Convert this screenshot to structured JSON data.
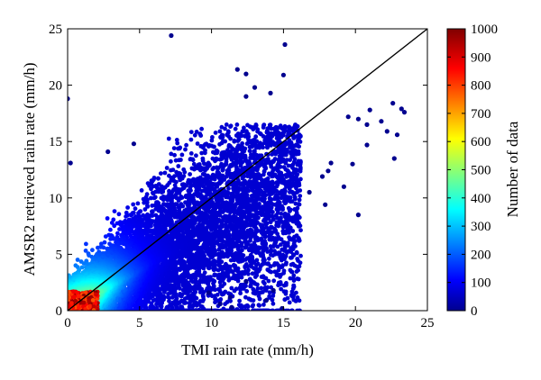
{
  "chart_data": {
    "type": "heatmap",
    "xlabel": "TMI rain rate (mm/h)",
    "ylabel": "AMSR2 retrieved rain rate (mm/h)",
    "xlim": [
      0,
      25
    ],
    "ylim": [
      0,
      25
    ],
    "x_ticks": [
      "0",
      "5",
      "10",
      "15",
      "20",
      "25"
    ],
    "y_ticks": [
      "0",
      "5",
      "10",
      "15",
      "20",
      "25"
    ],
    "reference_line": {
      "from": [
        0,
        0
      ],
      "to": [
        25,
        25
      ]
    },
    "colorbar": {
      "label": "Number of data",
      "range": [
        0,
        1000
      ],
      "ticks": [
        "0",
        "100",
        "200",
        "300",
        "400",
        "500",
        "600",
        "700",
        "800",
        "900",
        "1000"
      ],
      "colormap": "jet"
    },
    "outliers": [
      [
        7.2,
        24.4
      ],
      [
        15.1,
        23.6
      ],
      [
        11.8,
        21.4
      ],
      [
        12.4,
        21.0
      ],
      [
        15.0,
        20.9
      ],
      [
        13.0,
        19.8
      ],
      [
        14.1,
        19.3
      ],
      [
        12.4,
        19.0
      ],
      [
        22.6,
        18.4
      ],
      [
        23.2,
        17.9
      ],
      [
        23.4,
        17.6
      ],
      [
        21.0,
        17.8
      ],
      [
        20.2,
        17.0
      ],
      [
        19.5,
        17.2
      ],
      [
        22.2,
        15.9
      ],
      [
        22.9,
        15.6
      ],
      [
        20.8,
        16.5
      ],
      [
        21.8,
        16.8
      ],
      [
        22.7,
        13.5
      ],
      [
        20.8,
        14.7
      ],
      [
        19.8,
        13.0
      ],
      [
        18.1,
        12.4
      ],
      [
        17.7,
        11.9
      ],
      [
        20.2,
        8.5
      ],
      [
        19.2,
        11.0
      ],
      [
        12.4,
        2.6
      ],
      [
        11.3,
        1.2
      ],
      [
        14.3,
        1.8
      ],
      [
        11.4,
        0.3
      ],
      [
        14.9,
        0.2
      ],
      [
        0.0,
        18.8
      ],
      [
        0.2,
        13.1
      ],
      [
        2.8,
        14.1
      ],
      [
        4.6,
        14.8
      ],
      [
        18.3,
        13.1
      ],
      [
        16.8,
        10.5
      ],
      [
        17.9,
        9.4
      ],
      [
        13.8,
        0.9
      ],
      [
        9.8,
        1.6
      ],
      [
        10.6,
        0.6
      ]
    ]
  }
}
